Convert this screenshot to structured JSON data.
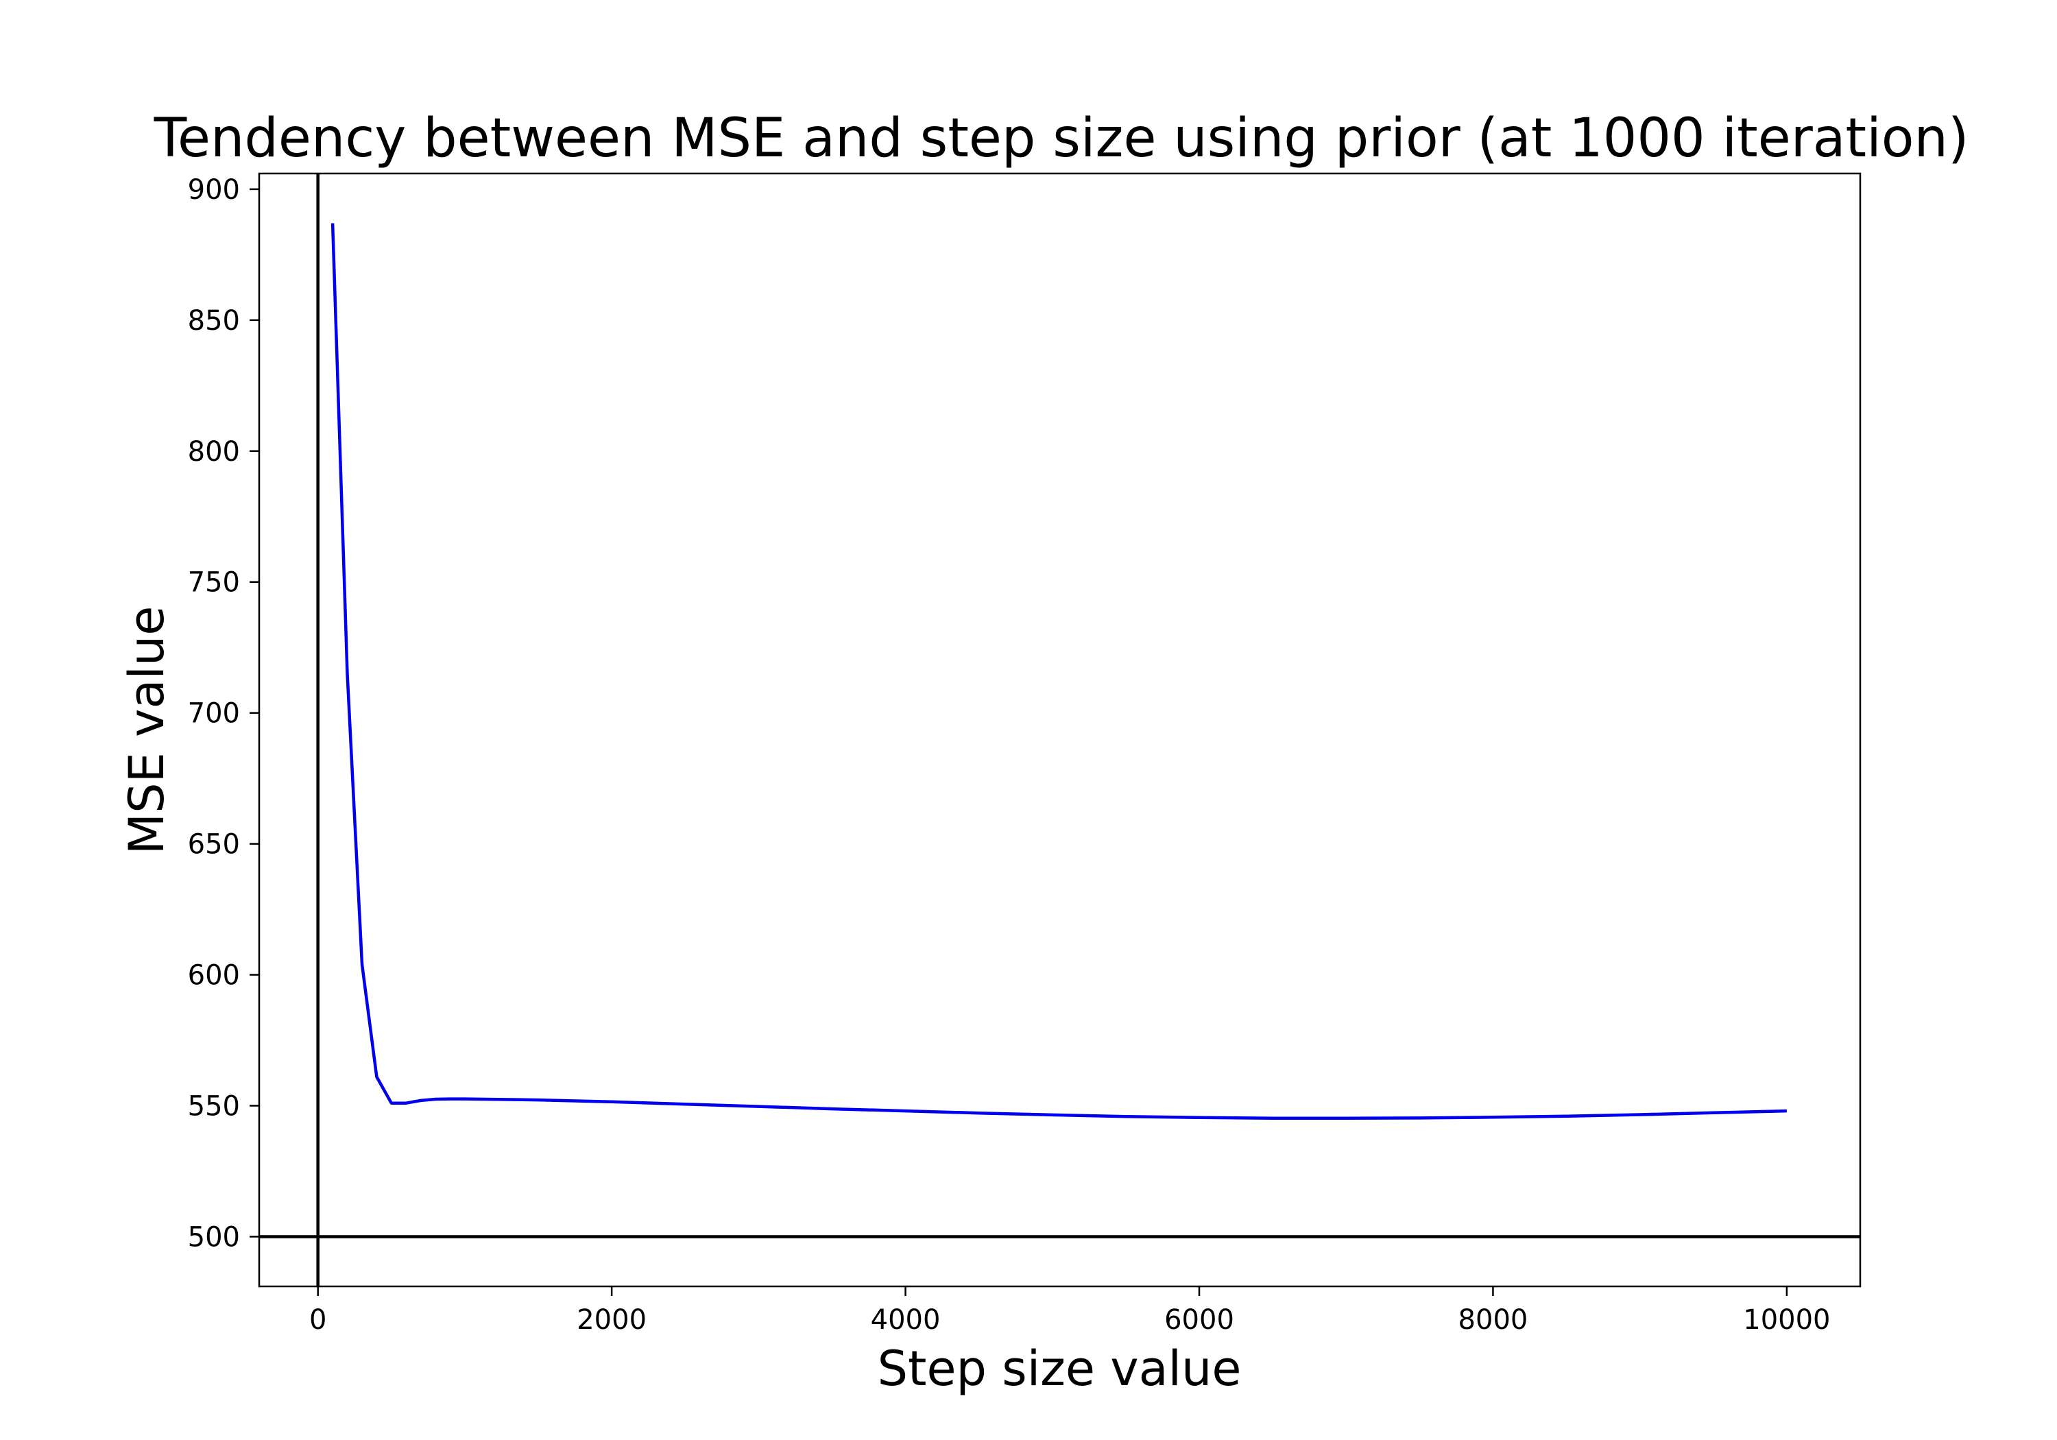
{
  "chart_data": {
    "type": "line",
    "title": "Tendency between MSE and step size using prior (at 1000 iteration)",
    "xlabel": "Step size value",
    "ylabel": "MSE value",
    "xlim": [
      -400,
      10500
    ],
    "ylim": [
      481,
      906
    ],
    "x_ticks": [
      0,
      2000,
      4000,
      6000,
      8000,
      10000
    ],
    "x_tick_labels": [
      "0",
      "2000",
      "4000",
      "6000",
      "8000",
      "10000"
    ],
    "y_ticks": [
      500,
      550,
      600,
      650,
      700,
      750,
      800,
      850,
      900
    ],
    "y_tick_labels": [
      "500",
      "550",
      "600",
      "650",
      "700",
      "750",
      "800",
      "850",
      "900"
    ],
    "grid": false,
    "reference_lines": {
      "vertical_x": 0,
      "horizontal_y": 500,
      "color": "#000000"
    },
    "series": [
      {
        "color": "#0000ee",
        "x": [
          100,
          200,
          300,
          400,
          500,
          600,
          700,
          800,
          900,
          1000,
          1500,
          2000,
          2500,
          3000,
          3500,
          4000,
          4500,
          5000,
          5500,
          6000,
          6500,
          7000,
          7500,
          8000,
          8500,
          9000,
          9500,
          10000
        ],
        "y": [
          887,
          715,
          604,
          561,
          551,
          551,
          552,
          552.5,
          552.6,
          552.6,
          552.2,
          551.5,
          550.6,
          549.7,
          548.8,
          548.0,
          547.2,
          546.5,
          545.9,
          545.5,
          545.2,
          545.2,
          545.3,
          545.6,
          546.0,
          546.6,
          547.3,
          548.0
        ]
      }
    ]
  }
}
